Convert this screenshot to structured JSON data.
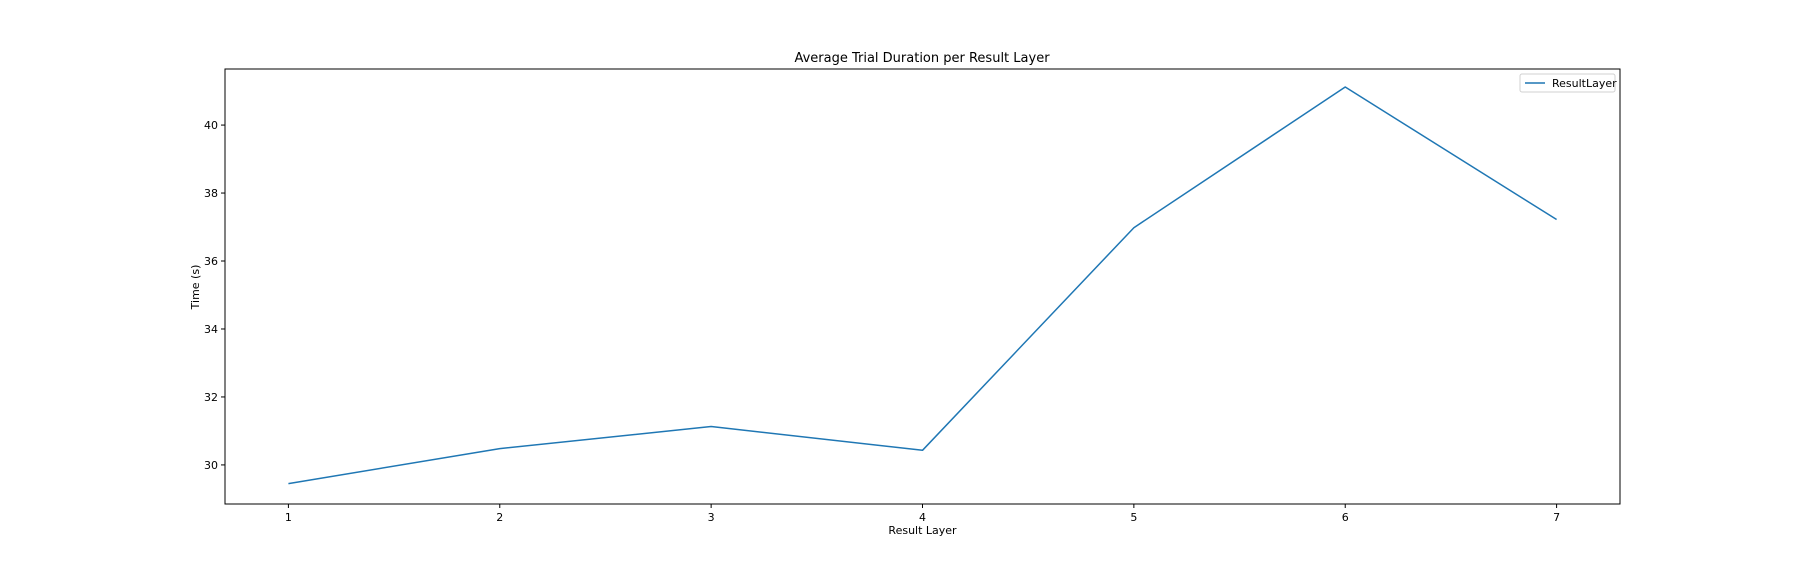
{
  "chart_data": {
    "type": "line",
    "title": "Average Trial Duration per Result Layer",
    "xlabel": "Result Layer",
    "ylabel": "Time (s)",
    "xlim": [
      0.7,
      7.3
    ],
    "ylim": [
      28.85,
      41.65
    ],
    "x_ticks": [
      "1",
      "2",
      "3",
      "4",
      "5",
      "6",
      "7"
    ],
    "y_ticks": [
      "30",
      "32",
      "34",
      "36",
      "38",
      "40"
    ],
    "grid": false,
    "legend_position": "top-right",
    "colors": {
      "series": "#1f77b4",
      "axes": "#000000",
      "background": "#ffffff"
    },
    "series": [
      {
        "name": "ResultLayer",
        "x": [
          1,
          2,
          3,
          4,
          5,
          6,
          7
        ],
        "y": [
          29.45,
          30.48,
          31.13,
          30.43,
          36.98,
          41.12,
          37.22
        ]
      }
    ]
  }
}
